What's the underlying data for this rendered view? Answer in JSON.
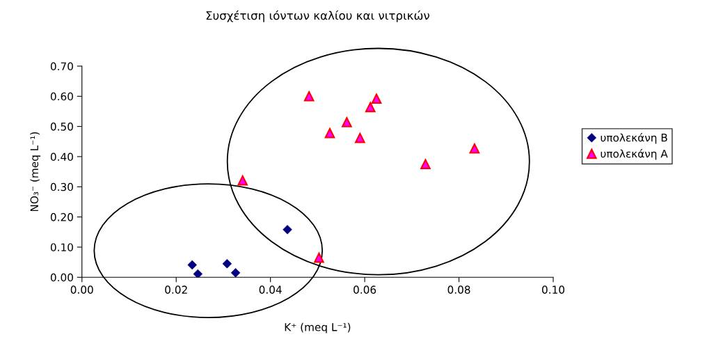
{
  "chart_data": {
    "type": "scatter",
    "title": "Συσχέτιση ιόντων καλίου και νιτρικών",
    "xlabel": "K⁺ (meq L⁻¹)",
    "ylabel": "NO₃⁻ (meq L⁻¹)",
    "xlim": [
      0,
      0.1
    ],
    "ylim": [
      0,
      0.7
    ],
    "xticks": [
      {
        "value": 0,
        "label": "0.00"
      },
      {
        "value": 0.02,
        "label": "0.02"
      },
      {
        "value": 0.04,
        "label": "0.04"
      },
      {
        "value": 0.06,
        "label": "0.06"
      },
      {
        "value": 0.08,
        "label": "0.08"
      },
      {
        "value": 0.1,
        "label": "0.10"
      }
    ],
    "yticks": [
      {
        "value": 0,
        "label": "0.00"
      },
      {
        "value": 0.1,
        "label": "0.10"
      },
      {
        "value": 0.2,
        "label": "0.20"
      },
      {
        "value": 0.3,
        "label": "0.30"
      },
      {
        "value": 0.4,
        "label": "0.40"
      },
      {
        "value": 0.5,
        "label": "0.50"
      },
      {
        "value": 0.6,
        "label": "0.60"
      },
      {
        "value": 0.7,
        "label": "0.70"
      }
    ],
    "grid": false,
    "legend": "right",
    "series": [
      {
        "name": "υπολεκάνη Β",
        "color": "#000080",
        "marker": "diamond",
        "x": [
          0.0234,
          0.0246,
          0.0308,
          0.0326,
          0.0436
        ],
        "values": [
          0.041,
          0.011,
          0.045,
          0.015,
          0.158
        ]
      },
      {
        "name": "υπολεκάνη Α",
        "color": "#ff00ff",
        "marker": "triangle",
        "x": [
          0.0341,
          0.0503,
          0.0482,
          0.0625,
          0.0612,
          0.0562,
          0.0526,
          0.059,
          0.0833,
          0.0729
        ],
        "values": [
          0.321,
          0.065,
          0.6,
          0.592,
          0.564,
          0.514,
          0.478,
          0.462,
          0.427,
          0.375
        ]
      }
    ]
  }
}
